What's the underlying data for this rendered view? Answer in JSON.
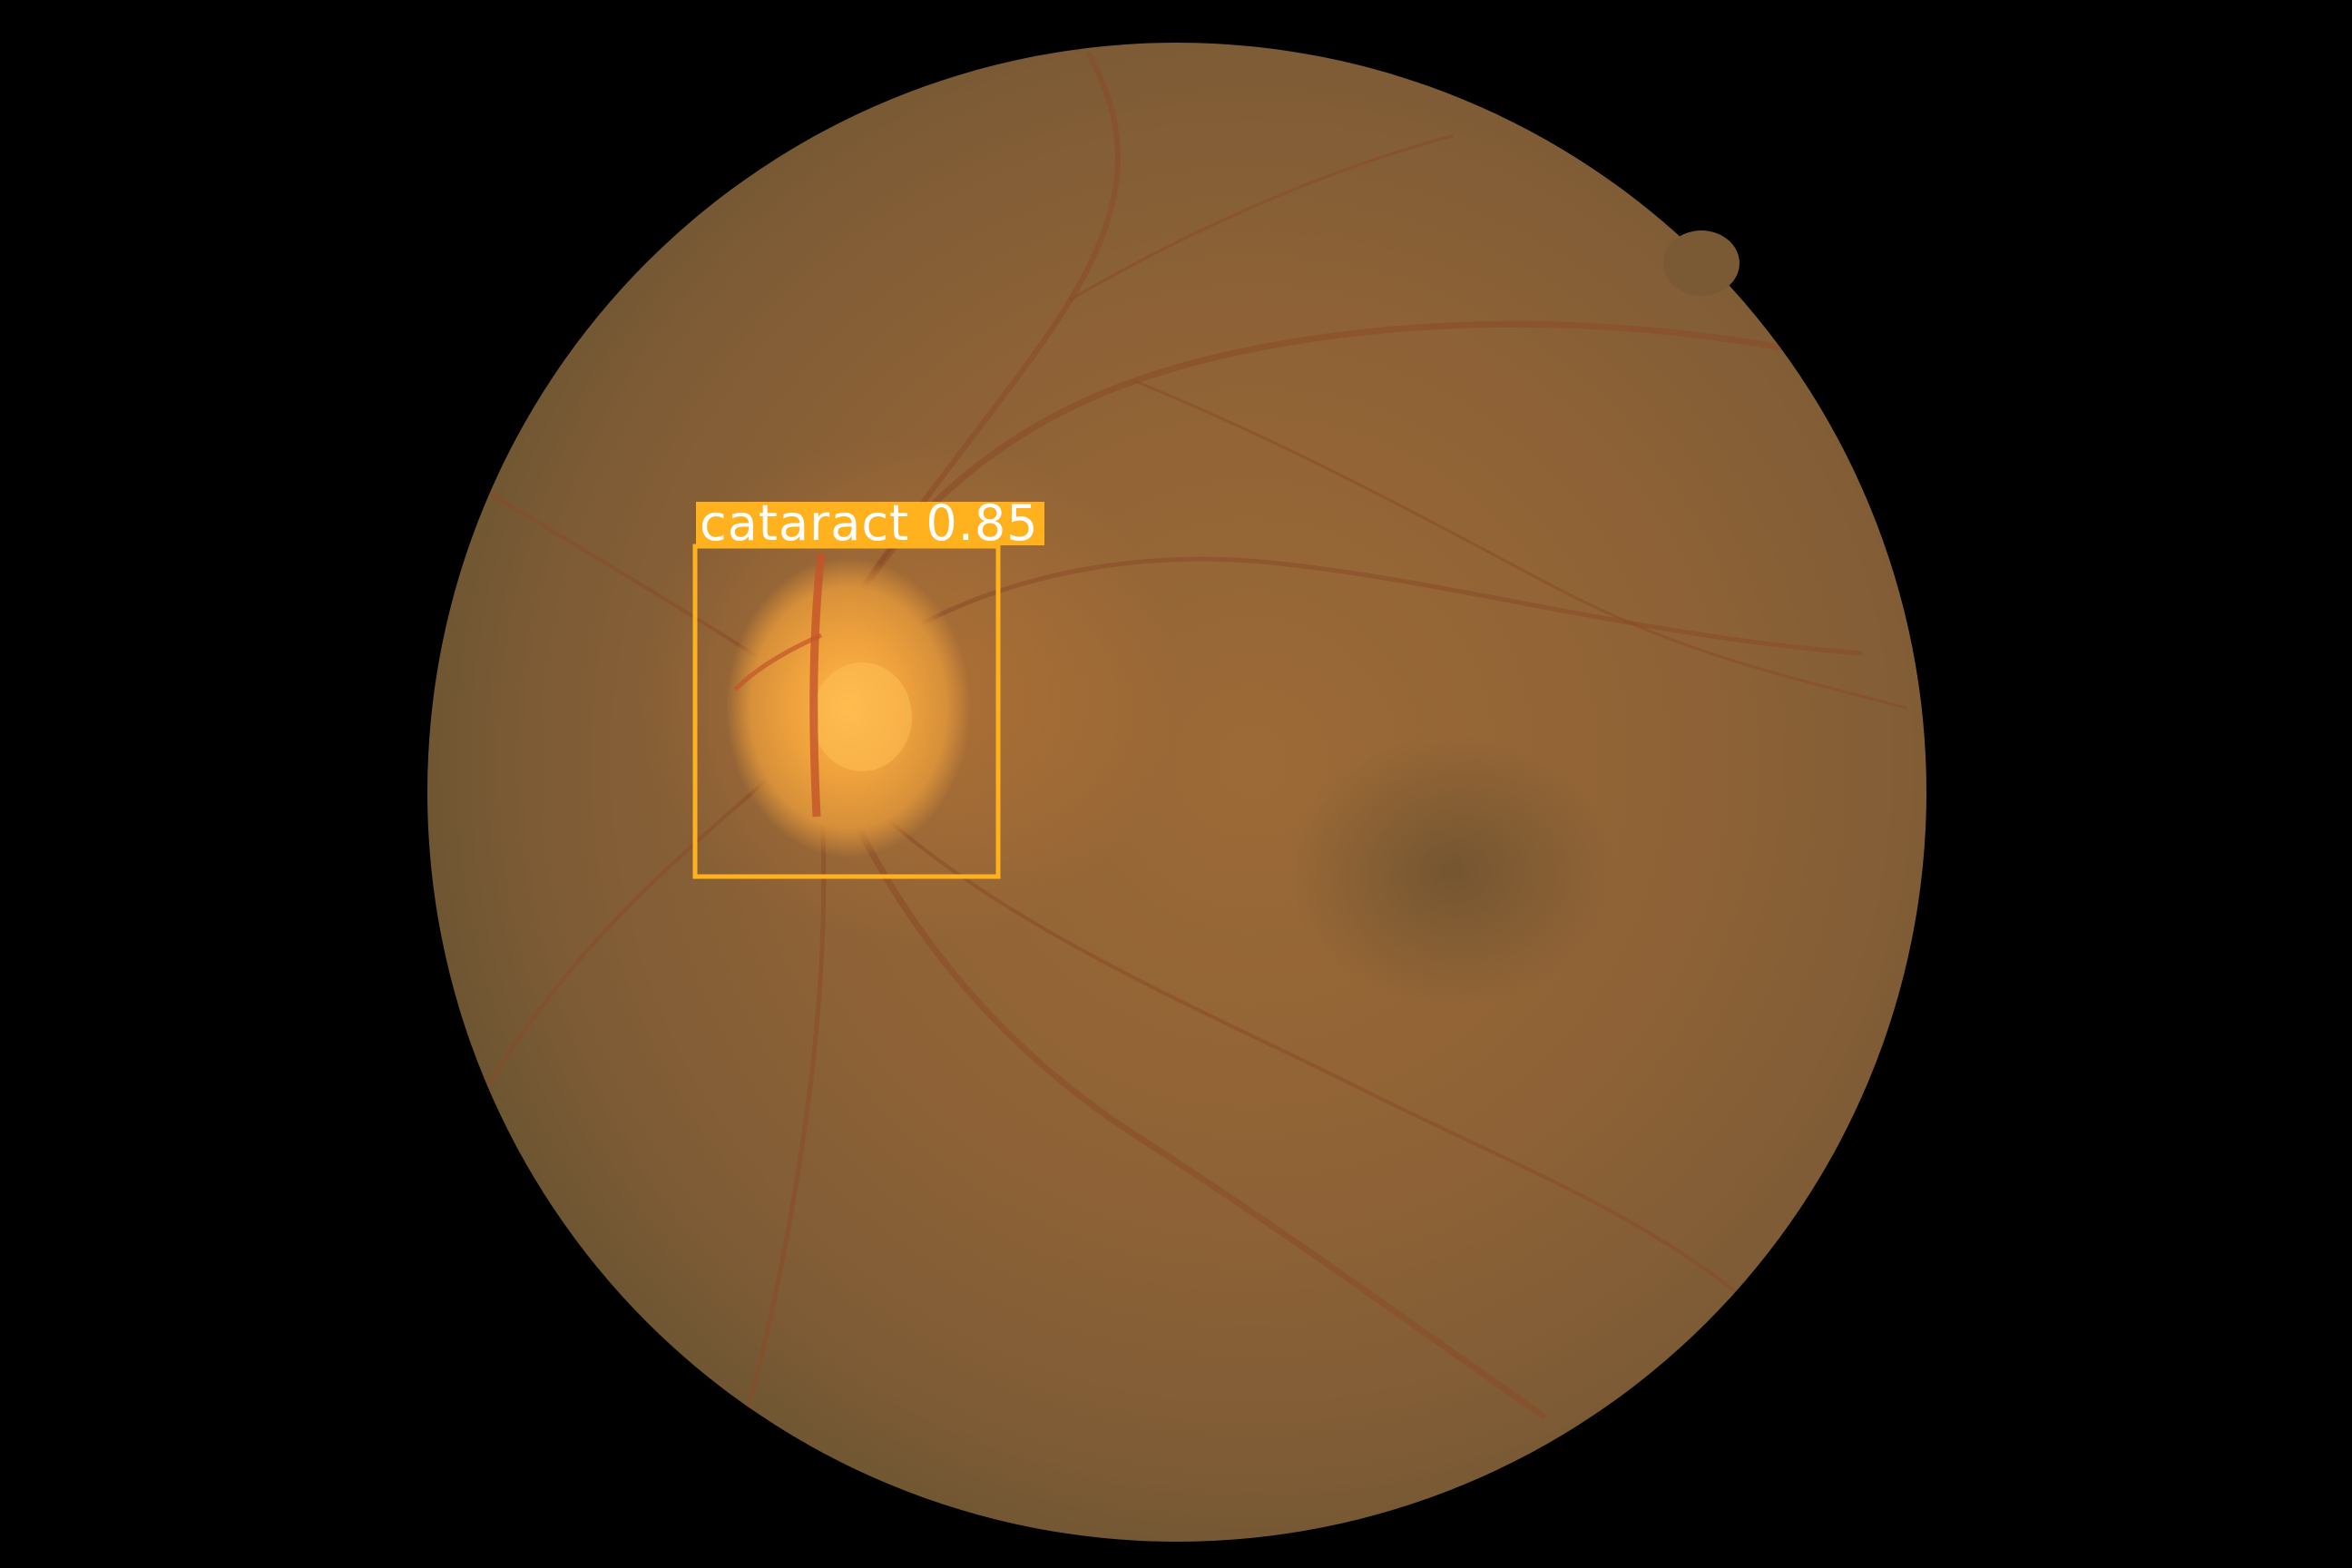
{
  "image": {
    "background_color": "#000000",
    "fundus_color": "#8a6238",
    "optic_disc_color": "#f2a53a"
  },
  "detection": {
    "label": "cataract",
    "confidence": "0.85",
    "box_color": "#ffb11e",
    "label_text_color": "#ffffff"
  }
}
